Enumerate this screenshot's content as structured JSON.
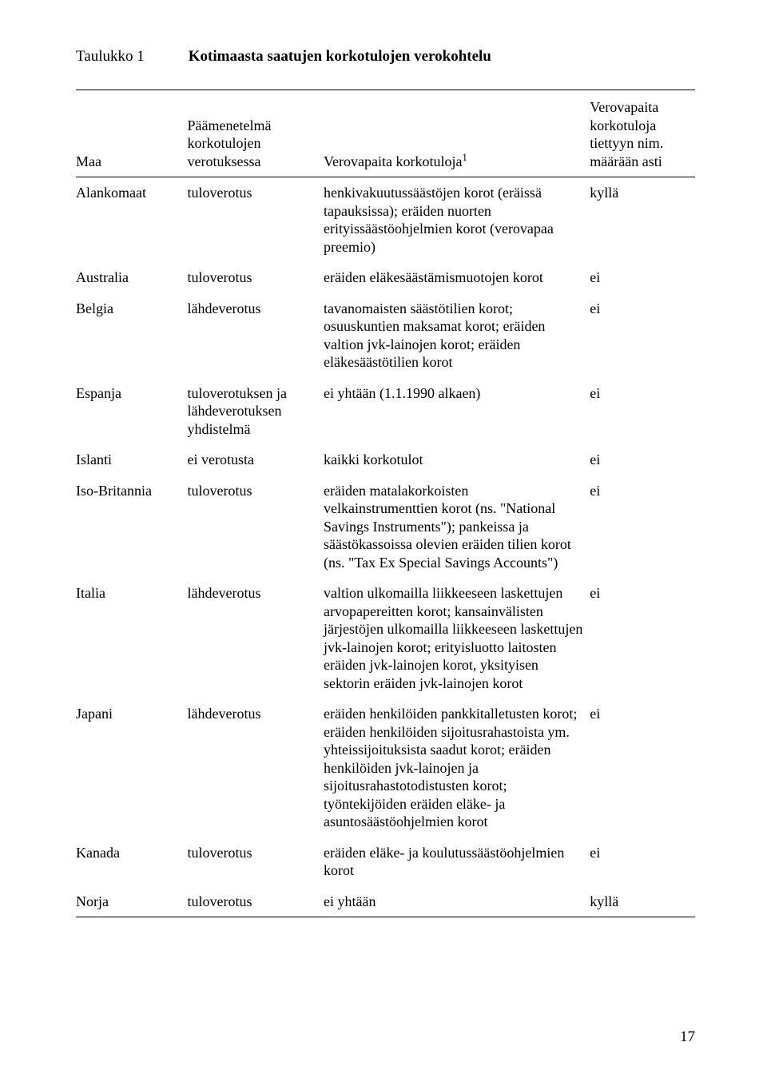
{
  "table_label": "Taulukko 1",
  "table_title": "Kotimaasta saatujen korkotulojen verokohtelu",
  "headers": {
    "country": "Maa",
    "method": "Päämenetelmä korkotulojen verotuksessa",
    "exempt_prefix": "Verovapaita korkotuloja",
    "exempt_sup": "1",
    "limit": "Verovapaita korkotuloja tiettyyn nim. määrään asti"
  },
  "rows": [
    {
      "country": "Alankomaat",
      "method": "tuloverotus",
      "exempt": "henkivakuutussäästöjen korot (eräissä tapauksissa); eräiden nuorten erityissäästöohjelmien korot (verovapaa preemio)",
      "limit": "kyllä"
    },
    {
      "country": "Australia",
      "method": "tuloverotus",
      "exempt": "eräiden eläkesäästämismuotojen korot",
      "limit": "ei"
    },
    {
      "country": "Belgia",
      "method": "lähdeverotus",
      "exempt": "tavanomaisten säästötilien korot; osuuskuntien maksamat korot; eräiden valtion jvk-lainojen korot; eräiden eläkesäästötilien korot",
      "limit": "ei"
    },
    {
      "country": "Espanja",
      "method": "tuloverotuksen ja lähdeverotuksen yhdistelmä",
      "exempt": "ei yhtään (1.1.1990 alkaen)",
      "limit": "ei"
    },
    {
      "country": "Islanti",
      "method": "ei verotusta",
      "exempt": "kaikki korkotulot",
      "limit": "ei"
    },
    {
      "country": "Iso-Britannia",
      "method": "tuloverotus",
      "exempt": "eräiden matalakorkoisten velkainstrumenttien korot (ns. \"National Savings Instruments\"); pankeissa ja säästökassoissa olevien eräiden tilien korot (ns. \"Tax Ex Special Savings Accounts\")",
      "limit": "ei"
    },
    {
      "country": "Italia",
      "method": "lähdeverotus",
      "exempt": "valtion ulkomailla liikkeeseen laskettujen arvopapereitten korot; kansainvälisten järjestöjen ulkomailla liikkeeseen laskettujen jvk-lainojen korot; erityisluotto laitosten eräiden jvk-lainojen korot, yksityisen sektorin eräiden jvk-lainojen korot",
      "limit": "ei"
    },
    {
      "country": "Japani",
      "method": "lähdeverotus",
      "exempt": "eräiden henkilöiden pankkitalletusten korot; eräiden henkilöiden sijoitusrahastoista ym. yhteissijoituksista saadut korot; eräiden henkilöiden jvk-lainojen ja sijoitusrahastotodistusten korot; työntekijöiden eräiden eläke- ja asuntosäästöohjelmien korot",
      "limit": "ei"
    },
    {
      "country": "Kanada",
      "method": "tuloverotus",
      "exempt": "eräiden eläke- ja koulutussäästöohjelmien korot",
      "limit": "ei"
    },
    {
      "country": "Norja",
      "method": "tuloverotus",
      "exempt": "ei yhtään",
      "limit": "kyllä"
    }
  ],
  "page_number": "17"
}
